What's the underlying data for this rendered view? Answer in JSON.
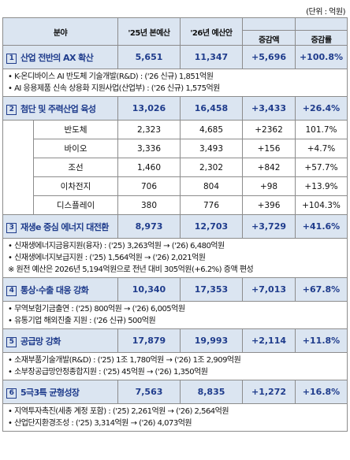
{
  "unit": "(단위 : 억원)",
  "header": {
    "field": "분야",
    "budget25": "'25년 본예산",
    "budget26": "'26년 예산안",
    "change": "증감액",
    "rate": "증감률"
  },
  "sections": [
    {
      "num": "1",
      "name": "산업 전반의 AX 확산",
      "v25": "5,651",
      "v26": "11,347",
      "change": "+5,696",
      "rate": "+100.8%",
      "subrows": [],
      "details": [
        "• K-온디바이스 AI 반도체 기술개발(R&D) : ('26 신규) 1,851억원",
        "• AI 응용제품 신속 상용화 지원사업(산업부) : ('26 신규) 1,575억원"
      ]
    },
    {
      "num": "2",
      "name": "첨단 및 주력산업 육성",
      "v25": "13,026",
      "v26": "16,458",
      "change": "+3,433",
      "rate": "+26.4%",
      "subrows": [
        {
          "name": "반도체",
          "v25": "2,323",
          "v26": "4,685",
          "change": "+2362",
          "rate": "101.7%"
        },
        {
          "name": "바이오",
          "v25": "3,336",
          "v26": "3,493",
          "change": "+156",
          "rate": "+4.7%"
        },
        {
          "name": "조선",
          "v25": "1,460",
          "v26": "2,302",
          "change": "+842",
          "rate": "+57.7%"
        },
        {
          "name": "이차전지",
          "v25": "706",
          "v26": "804",
          "change": "+98",
          "rate": "+13.9%"
        },
        {
          "name": "디스플레이",
          "v25": "380",
          "v26": "776",
          "change": "+396",
          "rate": "+104.3%"
        }
      ],
      "details": []
    },
    {
      "num": "3",
      "name": "재생e 중심 에너지 대전환",
      "v25": "8,973",
      "v26": "12,703",
      "change": "+3,729",
      "rate": "+41.6%",
      "subrows": [],
      "details": [
        "• 신재생에너지금융지원(융자) : ('25) 3,263억원 → ('26) 6,480억원",
        "• 신재생에너지보급지원 : ('25) 1,564억원 → ('26) 2,021억원",
        "※ 원전 예산은 2026년 5,194억원으로 전년 대비 305억원(+6.2%) 증액 편성"
      ]
    },
    {
      "num": "4",
      "name": "통상·수출 대응 강화",
      "v25": "10,340",
      "v26": "17,353",
      "change": "+7,013",
      "rate": "+67.8%",
      "subrows": [],
      "details": [
        "• 무역보험기금출연 : ('25) 800억원 → ('26) 6,005억원",
        "• 유통기업 해외진출 지원 : ('26 신규) 500억원"
      ]
    },
    {
      "num": "5",
      "name": "공급망 강화",
      "v25": "17,879",
      "v26": "19,993",
      "change": "+2,114",
      "rate": "+11.8%",
      "subrows": [],
      "details": [
        "• 소재부품기술개발(R&D) : ('25) 1조 1,780억원 → ('26) 1조 2,909억원",
        "• 소부장공급망안정종합지원 : ('25) 45억원 → ('26) 1,350억원"
      ]
    },
    {
      "num": "6",
      "name": "5극3특 균형성장",
      "v25": "7,563",
      "v26": "8,835",
      "change": "+1,272",
      "rate": "+16.8%",
      "subrows": [],
      "details": [
        "• 지역투자촉진(세종 계정 포함) : ('25) 2,261억원 → ('26) 2,564억원",
        "• 산업단지환경조성 : ('25) 3,314억원 → ('26) 4,073억원"
      ]
    }
  ]
}
